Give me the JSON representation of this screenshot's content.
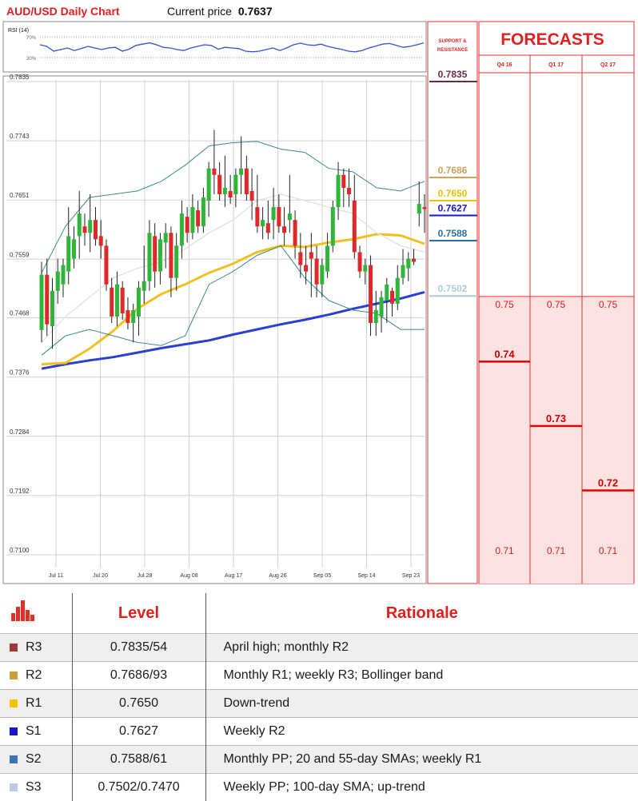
{
  "header": {
    "title": "AUD/USD Daily Chart",
    "price_label": "Current price",
    "price_value": "0.7637"
  },
  "rsi": {
    "label": "RSI (14)",
    "levels": [
      "70%",
      "30%"
    ]
  },
  "sr_panel": {
    "title_line1": "SUPPORT &",
    "title_line2": "RESISTANCE",
    "levels": [
      {
        "value": 0.7835,
        "label": "0.7835",
        "color": "#6b2a45"
      },
      {
        "value": 0.7686,
        "label": "0.7686",
        "color": "#c9a45a"
      },
      {
        "value": 0.765,
        "label": "0.7650",
        "color": "#f0c000"
      },
      {
        "value": 0.7627,
        "label": "0.7627",
        "color": "#1818c8"
      },
      {
        "value": 0.7588,
        "label": "0.7588",
        "color": "#2b6fa0"
      },
      {
        "value": 0.7502,
        "label": "0.7502",
        "color": "#a8cfd8"
      }
    ]
  },
  "forecasts": {
    "title": "FORECASTS",
    "quarters": [
      {
        "label": "Q4 16",
        "value": 0.74,
        "label_value": "0.74",
        "high": "0.75",
        "low": "0.71"
      },
      {
        "label": "Q1 17",
        "value": 0.73,
        "label_value": "0.73",
        "high": "0.75",
        "low": "0.71"
      },
      {
        "label": "Q2 17",
        "value": 0.72,
        "label_value": "0.72",
        "high": "0.75",
        "low": "0.71"
      }
    ]
  },
  "chart_data": {
    "type": "candlestick",
    "title": "AUD/USD Daily Chart",
    "y_ticks": [
      "0.7835",
      "0.7743",
      "0.7651",
      "0.7559",
      "0.7468",
      "0.7376",
      "0.7284",
      "0.7192",
      "0.7100"
    ],
    "ylim": [
      0.71,
      0.7835
    ],
    "x_ticks": [
      "Jul 11",
      "Jul 20",
      "Jul 29",
      "Aug 08",
      "Aug 17",
      "Aug 26",
      "Sep 05",
      "Sep 14",
      "Sep 23"
    ],
    "grid": true,
    "candles": [
      {
        "o": 0.7449,
        "h": 0.7555,
        "l": 0.743,
        "c": 0.7535
      },
      {
        "o": 0.7535,
        "h": 0.756,
        "l": 0.744,
        "c": 0.7458
      },
      {
        "o": 0.7455,
        "h": 0.753,
        "l": 0.742,
        "c": 0.751
      },
      {
        "o": 0.751,
        "h": 0.756,
        "l": 0.749,
        "c": 0.754
      },
      {
        "o": 0.752,
        "h": 0.756,
        "l": 0.75,
        "c": 0.755
      },
      {
        "o": 0.754,
        "h": 0.764,
        "l": 0.752,
        "c": 0.7595
      },
      {
        "o": 0.756,
        "h": 0.761,
        "l": 0.7545,
        "c": 0.759
      },
      {
        "o": 0.7595,
        "h": 0.7665,
        "l": 0.756,
        "c": 0.763
      },
      {
        "o": 0.761,
        "h": 0.763,
        "l": 0.758,
        "c": 0.76
      },
      {
        "o": 0.76,
        "h": 0.766,
        "l": 0.757,
        "c": 0.762
      },
      {
        "o": 0.762,
        "h": 0.764,
        "l": 0.758,
        "c": 0.759
      },
      {
        "o": 0.7595,
        "h": 0.762,
        "l": 0.756,
        "c": 0.758
      },
      {
        "o": 0.758,
        "h": 0.759,
        "l": 0.751,
        "c": 0.752
      },
      {
        "o": 0.7515,
        "h": 0.753,
        "l": 0.746,
        "c": 0.747
      },
      {
        "o": 0.747,
        "h": 0.754,
        "l": 0.7455,
        "c": 0.752
      },
      {
        "o": 0.7515,
        "h": 0.7525,
        "l": 0.7465,
        "c": 0.7475
      },
      {
        "o": 0.748,
        "h": 0.75,
        "l": 0.745,
        "c": 0.746
      },
      {
        "o": 0.746,
        "h": 0.749,
        "l": 0.743,
        "c": 0.748
      },
      {
        "o": 0.747,
        "h": 0.7525,
        "l": 0.744,
        "c": 0.7515
      },
      {
        "o": 0.751,
        "h": 0.758,
        "l": 0.749,
        "c": 0.7525
      },
      {
        "o": 0.7525,
        "h": 0.762,
        "l": 0.751,
        "c": 0.76
      },
      {
        "o": 0.7595,
        "h": 0.7615,
        "l": 0.7515,
        "c": 0.754
      },
      {
        "o": 0.754,
        "h": 0.76,
        "l": 0.752,
        "c": 0.759
      },
      {
        "o": 0.7585,
        "h": 0.7615,
        "l": 0.7545,
        "c": 0.76
      },
      {
        "o": 0.76,
        "h": 0.761,
        "l": 0.75,
        "c": 0.753
      },
      {
        "o": 0.753,
        "h": 0.76,
        "l": 0.751,
        "c": 0.758
      },
      {
        "o": 0.758,
        "h": 0.765,
        "l": 0.756,
        "c": 0.763
      },
      {
        "o": 0.7625,
        "h": 0.764,
        "l": 0.7585,
        "c": 0.76
      },
      {
        "o": 0.76,
        "h": 0.766,
        "l": 0.759,
        "c": 0.764
      },
      {
        "o": 0.7635,
        "h": 0.765,
        "l": 0.76,
        "c": 0.761
      },
      {
        "o": 0.761,
        "h": 0.767,
        "l": 0.76,
        "c": 0.7655
      },
      {
        "o": 0.765,
        "h": 0.771,
        "l": 0.7625,
        "c": 0.77
      },
      {
        "o": 0.77,
        "h": 0.776,
        "l": 0.766,
        "c": 0.769
      },
      {
        "o": 0.769,
        "h": 0.771,
        "l": 0.765,
        "c": 0.766
      },
      {
        "o": 0.766,
        "h": 0.772,
        "l": 0.764,
        "c": 0.767
      },
      {
        "o": 0.7665,
        "h": 0.769,
        "l": 0.7645,
        "c": 0.7655
      },
      {
        "o": 0.766,
        "h": 0.77,
        "l": 0.764,
        "c": 0.769
      },
      {
        "o": 0.769,
        "h": 0.775,
        "l": 0.766,
        "c": 0.77
      },
      {
        "o": 0.77,
        "h": 0.772,
        "l": 0.765,
        "c": 0.766
      },
      {
        "o": 0.7665,
        "h": 0.77,
        "l": 0.762,
        "c": 0.765
      },
      {
        "o": 0.764,
        "h": 0.769,
        "l": 0.76,
        "c": 0.761
      },
      {
        "o": 0.761,
        "h": 0.764,
        "l": 0.759,
        "c": 0.762
      },
      {
        "o": 0.7615,
        "h": 0.765,
        "l": 0.759,
        "c": 0.76
      },
      {
        "o": 0.762,
        "h": 0.767,
        "l": 0.759,
        "c": 0.764
      },
      {
        "o": 0.764,
        "h": 0.766,
        "l": 0.76,
        "c": 0.761
      },
      {
        "o": 0.761,
        "h": 0.764,
        "l": 0.758,
        "c": 0.76
      },
      {
        "o": 0.762,
        "h": 0.769,
        "l": 0.76,
        "c": 0.763
      },
      {
        "o": 0.762,
        "h": 0.7635,
        "l": 0.756,
        "c": 0.758
      },
      {
        "o": 0.757,
        "h": 0.76,
        "l": 0.753,
        "c": 0.755
      },
      {
        "o": 0.755,
        "h": 0.758,
        "l": 0.752,
        "c": 0.754
      },
      {
        "o": 0.757,
        "h": 0.76,
        "l": 0.75,
        "c": 0.756
      },
      {
        "o": 0.756,
        "h": 0.758,
        "l": 0.75,
        "c": 0.752
      },
      {
        "o": 0.752,
        "h": 0.756,
        "l": 0.75,
        "c": 0.755
      },
      {
        "o": 0.754,
        "h": 0.76,
        "l": 0.753,
        "c": 0.758
      },
      {
        "o": 0.758,
        "h": 0.765,
        "l": 0.757,
        "c": 0.764
      },
      {
        "o": 0.764,
        "h": 0.771,
        "l": 0.762,
        "c": 0.769
      },
      {
        "o": 0.769,
        "h": 0.77,
        "l": 0.764,
        "c": 0.767
      },
      {
        "o": 0.767,
        "h": 0.77,
        "l": 0.764,
        "c": 0.766
      },
      {
        "o": 0.765,
        "h": 0.769,
        "l": 0.756,
        "c": 0.757
      },
      {
        "o": 0.757,
        "h": 0.758,
        "l": 0.753,
        "c": 0.754
      },
      {
        "o": 0.754,
        "h": 0.756,
        "l": 0.752,
        "c": 0.755
      },
      {
        "o": 0.755,
        "h": 0.7565,
        "l": 0.744,
        "c": 0.746
      },
      {
        "o": 0.746,
        "h": 0.751,
        "l": 0.744,
        "c": 0.748
      },
      {
        "o": 0.747,
        "h": 0.751,
        "l": 0.7445,
        "c": 0.75
      },
      {
        "o": 0.7495,
        "h": 0.753,
        "l": 0.746,
        "c": 0.752
      },
      {
        "o": 0.751,
        "h": 0.7515,
        "l": 0.747,
        "c": 0.749
      },
      {
        "o": 0.749,
        "h": 0.755,
        "l": 0.748,
        "c": 0.753
      },
      {
        "o": 0.753,
        "h": 0.7575,
        "l": 0.752,
        "c": 0.755
      },
      {
        "o": 0.7545,
        "h": 0.757,
        "l": 0.7525,
        "c": 0.756
      },
      {
        "o": 0.756,
        "h": 0.7575,
        "l": 0.755,
        "c": 0.7555
      },
      {
        "o": 0.763,
        "h": 0.768,
        "l": 0.761,
        "c": 0.7645
      },
      {
        "o": 0.764,
        "h": 0.766,
        "l": 0.76,
        "c": 0.7637
      }
    ],
    "series": [
      {
        "name": "",
        "color": "#2a3fd6",
        "values": [
          0.7389,
          0.7396,
          0.7402,
          0.7407,
          0.7414,
          0.7421,
          0.7427,
          0.7433,
          0.7442,
          0.745,
          0.7458,
          0.7465,
          0.7473,
          0.7482,
          0.749,
          0.7498,
          0.7508
        ]
      },
      {
        "name": "",
        "color": "#f0c020",
        "values": [
          0.7396,
          0.7398,
          0.742,
          0.7448,
          0.7482,
          0.7505,
          0.752,
          0.7538,
          0.7552,
          0.757,
          0.758,
          0.7578,
          0.7585,
          0.759,
          0.7598,
          0.7596,
          0.7583
        ]
      },
      {
        "name": "",
        "color": "#e3e3e3",
        "values": [
          0.743,
          0.747,
          0.75,
          0.753,
          0.7545,
          0.7555,
          0.7575,
          0.76,
          0.762,
          0.765,
          0.766,
          0.765,
          0.764,
          0.763,
          0.76,
          0.758,
          0.757
        ]
      },
      {
        "name": "",
        "color": "#3a8a8a",
        "values": [
          0.7538,
          0.761,
          0.7655,
          0.766,
          0.7665,
          0.768,
          0.7705,
          0.7735,
          0.774,
          0.7742,
          0.773,
          0.7725,
          0.77,
          0.7695,
          0.767,
          0.7665,
          0.768
        ]
      },
      {
        "name": "",
        "color": "#3a8a8a",
        "values": [
          0.741,
          0.744,
          0.745,
          0.744,
          0.743,
          0.7425,
          0.744,
          0.752,
          0.754,
          0.7565,
          0.758,
          0.753,
          0.7495,
          0.748,
          0.7475,
          0.745,
          0.745
        ]
      }
    ],
    "rsi": [
      0.6,
      0.55,
      0.4,
      0.45,
      0.5,
      0.42,
      0.48,
      0.55,
      0.5,
      0.45,
      0.5,
      0.52,
      0.4,
      0.46,
      0.58,
      0.62,
      0.66,
      0.6,
      0.52,
      0.5,
      0.45,
      0.42,
      0.5,
      0.55,
      0.6,
      0.58,
      0.46,
      0.52,
      0.5,
      0.48,
      0.4,
      0.38,
      0.4,
      0.45,
      0.5,
      0.42,
      0.5,
      0.6,
      0.65,
      0.6,
      0.58,
      0.62,
      0.55,
      0.5,
      0.46,
      0.4,
      0.38,
      0.42,
      0.5,
      0.56,
      0.62,
      0.64,
      0.58,
      0.52,
      0.55,
      0.6,
      0.66
    ]
  },
  "table": {
    "headers": {
      "level": "Level",
      "rationale": "Rationale"
    },
    "rows": [
      {
        "name": "R3",
        "color": "#9e3a3a",
        "level": "0.7835/54",
        "rationale": "April high; monthly R2"
      },
      {
        "name": "R2",
        "color": "#c9a13a",
        "level": "0.7686/93",
        "rationale": "Monthly R1; weekly R3; Bollinger band"
      },
      {
        "name": "R1",
        "color": "#f2c400",
        "level": "0.7650",
        "rationale": "Down-trend"
      },
      {
        "name": "S1",
        "color": "#1818c8",
        "level": "0.7627",
        "rationale": "Weekly R2"
      },
      {
        "name": "S2",
        "color": "#3d73b8",
        "level": "0.7588/61",
        "rationale": "Monthly PP; 20 and 55-day SMAs; weekly R1"
      },
      {
        "name": "S3",
        "color": "#b8cbe8",
        "level": "0.7502/0.7470",
        "rationale": "Weekly PP; 100-day SMA; up-trend"
      }
    ]
  }
}
